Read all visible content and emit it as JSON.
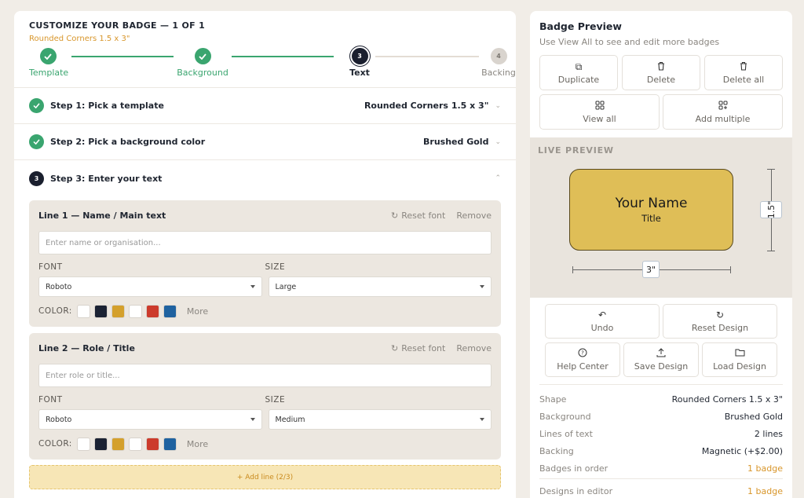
{
  "header": {
    "title": "CUSTOMIZE YOUR BADGE — 1 OF 1",
    "subtitle": "Rounded Corners 1.5 x 3\""
  },
  "stepper": [
    {
      "num": "✓",
      "label": "Template",
      "state": "done"
    },
    {
      "num": "✓",
      "label": "Background",
      "state": "done"
    },
    {
      "num": "3",
      "label": "Text",
      "state": "current"
    },
    {
      "num": "4",
      "label": "Backing",
      "state": "todo"
    }
  ],
  "accordion": {
    "step1": {
      "label": "Step 1: Pick a template",
      "value": "Rounded Corners 1.5 x 3\""
    },
    "step2": {
      "label": "Step 2: Pick a background color",
      "value": "Brushed Gold"
    },
    "step3": {
      "num": "3",
      "label": "Step 3: Enter your text"
    }
  },
  "lines": [
    {
      "title": "Line 1 — Name / Main text",
      "reset": "Reset font",
      "remove": "Remove",
      "placeholder": "Enter name or organisation...",
      "font_label": "FONT",
      "size_label": "SIZE",
      "font": "Roboto",
      "size": "Large",
      "color_label": "COLOR:",
      "more": "More"
    },
    {
      "title": "Line 2 — Role / Title",
      "reset": "Reset font",
      "remove": "Remove",
      "placeholder": "Enter role or title...",
      "font_label": "FONT",
      "size_label": "SIZE",
      "font": "Roboto",
      "size": "Medium",
      "color_label": "COLOR:",
      "more": "More"
    }
  ],
  "swatches": [
    "#ffffff",
    "#1b2233",
    "#d4a02c",
    "#ffffff",
    "#cc3b2c",
    "#1f62a0"
  ],
  "add_line": "+ Add line (2/3)",
  "preview": {
    "title": "Badge Preview",
    "subtitle": "Use View All to see and edit more badges",
    "buttons": {
      "duplicate": "Duplicate",
      "delete": "Delete",
      "delete_all": "Delete all",
      "view_all": "View all",
      "add_multiple": "Add multiple"
    },
    "live_label": "LIVE PREVIEW",
    "badge_name": "Your Name",
    "badge_title": "Title",
    "badge_color": "#dfbe57",
    "width_dim": "3\"",
    "height_dim": "1.5\""
  },
  "actions": {
    "undo": "Undo",
    "reset_design": "Reset Design",
    "help_center": "Help Center",
    "save_design": "Save Design",
    "load_design": "Load Design"
  },
  "summary": [
    {
      "key": "Shape",
      "value": "Rounded Corners 1.5 x 3\"",
      "accent": false
    },
    {
      "key": "Background",
      "value": "Brushed Gold",
      "accent": false
    },
    {
      "key": "Lines of text",
      "value": "2 lines",
      "accent": false
    },
    {
      "key": "Backing",
      "value": "Magnetic (+$2.00)",
      "accent": false
    },
    {
      "key": "Badges in order",
      "value": "1 badge",
      "accent": true
    },
    {
      "key": "Designs in editor",
      "value": "1 badge",
      "accent": true
    }
  ],
  "colors": {
    "accent": "#d8962b",
    "success": "#3aa56f",
    "dark": "#1a1f2e"
  }
}
